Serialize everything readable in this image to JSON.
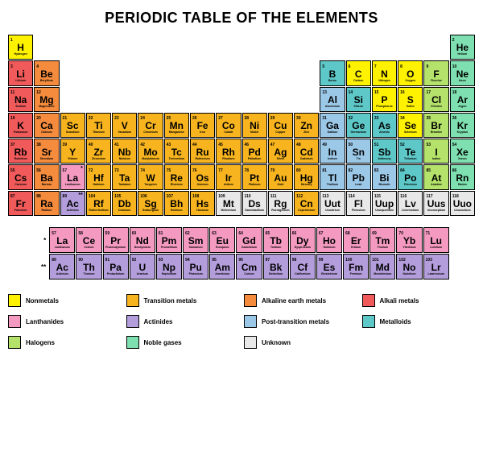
{
  "title": "PERIODIC TABLE OF THE ELEMENTS",
  "title_fontsize": 18,
  "grid": {
    "cols": 18,
    "rows": 7
  },
  "categories": {
    "nonmetal": {
      "label": "Nonmetals",
      "color": "#fff200"
    },
    "transition": {
      "label": "Transition metals",
      "color": "#f7b41e"
    },
    "alkaline_earth": {
      "label": "Alkaline earth metals",
      "color": "#f58b3c"
    },
    "alkali": {
      "label": "Alkali metals",
      "color": "#f15a5a"
    },
    "lanthanide": {
      "label": "Lanthanides",
      "color": "#f49ac1"
    },
    "actinide": {
      "label": "Actinides",
      "color": "#b39ddb"
    },
    "post_transition": {
      "label": "Post-transition metals",
      "color": "#9cc8e8"
    },
    "metalloid": {
      "label": "Metalloids",
      "color": "#5ec8c8"
    },
    "halogen": {
      "label": "Halogens",
      "color": "#b4e26a"
    },
    "noble": {
      "label": "Noble gases",
      "color": "#7ee0b0"
    },
    "unknown": {
      "label": "Unknown",
      "color": "#e8e8e8"
    }
  },
  "legend_order": [
    "nonmetal",
    "transition",
    "alkaline_earth",
    "alkali",
    "lanthanide",
    "actinide",
    "post_transition",
    "metalloid",
    "halogen",
    "noble",
    "unknown"
  ],
  "legend_cols": 4,
  "lanth_marker": "*",
  "actin_marker": "**",
  "elements": [
    {
      "n": 1,
      "s": "H",
      "nm": "Hydrogen",
      "c": "nonmetal",
      "row": 1,
      "col": 1
    },
    {
      "n": 2,
      "s": "He",
      "nm": "Helium",
      "c": "noble",
      "row": 1,
      "col": 18
    },
    {
      "n": 3,
      "s": "Li",
      "nm": "Lithium",
      "c": "alkali",
      "row": 2,
      "col": 1
    },
    {
      "n": 4,
      "s": "Be",
      "nm": "Beryllium",
      "c": "alkaline_earth",
      "row": 2,
      "col": 2
    },
    {
      "n": 5,
      "s": "B",
      "nm": "Boron",
      "c": "metalloid",
      "row": 2,
      "col": 13
    },
    {
      "n": 6,
      "s": "C",
      "nm": "Carbon",
      "c": "nonmetal",
      "row": 2,
      "col": 14
    },
    {
      "n": 7,
      "s": "N",
      "nm": "Nitrogen",
      "c": "nonmetal",
      "row": 2,
      "col": 15
    },
    {
      "n": 8,
      "s": "O",
      "nm": "Oxygen",
      "c": "nonmetal",
      "row": 2,
      "col": 16
    },
    {
      "n": 9,
      "s": "F",
      "nm": "Fluorine",
      "c": "halogen",
      "row": 2,
      "col": 17
    },
    {
      "n": 10,
      "s": "Ne",
      "nm": "Neon",
      "c": "noble",
      "row": 2,
      "col": 18
    },
    {
      "n": 11,
      "s": "Na",
      "nm": "Sodium",
      "c": "alkali",
      "row": 3,
      "col": 1
    },
    {
      "n": 12,
      "s": "Mg",
      "nm": "Magnesium",
      "c": "alkaline_earth",
      "row": 3,
      "col": 2
    },
    {
      "n": 13,
      "s": "Al",
      "nm": "Aluminium",
      "c": "post_transition",
      "row": 3,
      "col": 13
    },
    {
      "n": 14,
      "s": "Si",
      "nm": "Silicon",
      "c": "metalloid",
      "row": 3,
      "col": 14
    },
    {
      "n": 15,
      "s": "P",
      "nm": "Phosphorus",
      "c": "nonmetal",
      "row": 3,
      "col": 15
    },
    {
      "n": 16,
      "s": "S",
      "nm": "Sulfur",
      "c": "nonmetal",
      "row": 3,
      "col": 16
    },
    {
      "n": 17,
      "s": "Cl",
      "nm": "Chlorine",
      "c": "halogen",
      "row": 3,
      "col": 17
    },
    {
      "n": 18,
      "s": "Ar",
      "nm": "Argon",
      "c": "noble",
      "row": 3,
      "col": 18
    },
    {
      "n": 19,
      "s": "K",
      "nm": "Potassium",
      "c": "alkali",
      "row": 4,
      "col": 1
    },
    {
      "n": 20,
      "s": "Ca",
      "nm": "Calcium",
      "c": "alkaline_earth",
      "row": 4,
      "col": 2
    },
    {
      "n": 21,
      "s": "Sc",
      "nm": "Scandium",
      "c": "transition",
      "row": 4,
      "col": 3
    },
    {
      "n": 22,
      "s": "Ti",
      "nm": "Titanium",
      "c": "transition",
      "row": 4,
      "col": 4
    },
    {
      "n": 23,
      "s": "V",
      "nm": "Vanadium",
      "c": "transition",
      "row": 4,
      "col": 5
    },
    {
      "n": 24,
      "s": "Cr",
      "nm": "Chromium",
      "c": "transition",
      "row": 4,
      "col": 6
    },
    {
      "n": 25,
      "s": "Mn",
      "nm": "Manganese",
      "c": "transition",
      "row": 4,
      "col": 7
    },
    {
      "n": 26,
      "s": "Fe",
      "nm": "Iron",
      "c": "transition",
      "row": 4,
      "col": 8
    },
    {
      "n": 27,
      "s": "Co",
      "nm": "Cobalt",
      "c": "transition",
      "row": 4,
      "col": 9
    },
    {
      "n": 28,
      "s": "Ni",
      "nm": "Nickel",
      "c": "transition",
      "row": 4,
      "col": 10
    },
    {
      "n": 29,
      "s": "Cu",
      "nm": "Copper",
      "c": "transition",
      "row": 4,
      "col": 11
    },
    {
      "n": 30,
      "s": "Zn",
      "nm": "Zinc",
      "c": "transition",
      "row": 4,
      "col": 12
    },
    {
      "n": 31,
      "s": "Ga",
      "nm": "Gallium",
      "c": "post_transition",
      "row": 4,
      "col": 13
    },
    {
      "n": 32,
      "s": "Ge",
      "nm": "Germanium",
      "c": "metalloid",
      "row": 4,
      "col": 14
    },
    {
      "n": 33,
      "s": "As",
      "nm": "Arsenic",
      "c": "metalloid",
      "row": 4,
      "col": 15
    },
    {
      "n": 34,
      "s": "Se",
      "nm": "Selenium",
      "c": "nonmetal",
      "row": 4,
      "col": 16
    },
    {
      "n": 35,
      "s": "Br",
      "nm": "Bromine",
      "c": "halogen",
      "row": 4,
      "col": 17
    },
    {
      "n": 36,
      "s": "Kr",
      "nm": "Krypton",
      "c": "noble",
      "row": 4,
      "col": 18
    },
    {
      "n": 37,
      "s": "Rb",
      "nm": "Rubidium",
      "c": "alkali",
      "row": 5,
      "col": 1
    },
    {
      "n": 38,
      "s": "Sr",
      "nm": "Strontium",
      "c": "alkaline_earth",
      "row": 5,
      "col": 2
    },
    {
      "n": 39,
      "s": "Y",
      "nm": "Yttrium",
      "c": "transition",
      "row": 5,
      "col": 3
    },
    {
      "n": 40,
      "s": "Zr",
      "nm": "Zirconium",
      "c": "transition",
      "row": 5,
      "col": 4
    },
    {
      "n": 41,
      "s": "Nb",
      "nm": "Niobium",
      "c": "transition",
      "row": 5,
      "col": 5
    },
    {
      "n": 42,
      "s": "Mo",
      "nm": "Molybdenum",
      "c": "transition",
      "row": 5,
      "col": 6
    },
    {
      "n": 43,
      "s": "Tc",
      "nm": "Technetium",
      "c": "transition",
      "row": 5,
      "col": 7
    },
    {
      "n": 44,
      "s": "Ru",
      "nm": "Ruthenium",
      "c": "transition",
      "row": 5,
      "col": 8
    },
    {
      "n": 45,
      "s": "Rh",
      "nm": "Rhodium",
      "c": "transition",
      "row": 5,
      "col": 9
    },
    {
      "n": 46,
      "s": "Pd",
      "nm": "Palladium",
      "c": "transition",
      "row": 5,
      "col": 10
    },
    {
      "n": 47,
      "s": "Ag",
      "nm": "Silver",
      "c": "transition",
      "row": 5,
      "col": 11
    },
    {
      "n": 48,
      "s": "Cd",
      "nm": "Cadmium",
      "c": "transition",
      "row": 5,
      "col": 12
    },
    {
      "n": 49,
      "s": "In",
      "nm": "Indium",
      "c": "post_transition",
      "row": 5,
      "col": 13
    },
    {
      "n": 50,
      "s": "Sn",
      "nm": "Tin",
      "c": "post_transition",
      "row": 5,
      "col": 14
    },
    {
      "n": 51,
      "s": "Sb",
      "nm": "Antimony",
      "c": "metalloid",
      "row": 5,
      "col": 15
    },
    {
      "n": 52,
      "s": "Te",
      "nm": "Tellurium",
      "c": "metalloid",
      "row": 5,
      "col": 16
    },
    {
      "n": 53,
      "s": "I",
      "nm": "Iodine",
      "c": "halogen",
      "row": 5,
      "col": 17
    },
    {
      "n": 54,
      "s": "Xe",
      "nm": "Xenon",
      "c": "noble",
      "row": 5,
      "col": 18
    },
    {
      "n": 55,
      "s": "Cs",
      "nm": "Caesium",
      "c": "alkali",
      "row": 6,
      "col": 1
    },
    {
      "n": 56,
      "s": "Ba",
      "nm": "Barium",
      "c": "alkaline_earth",
      "row": 6,
      "col": 2
    },
    {
      "n": 72,
      "s": "Hf",
      "nm": "Hafnium",
      "c": "transition",
      "row": 6,
      "col": 4
    },
    {
      "n": 73,
      "s": "Ta",
      "nm": "Tantalum",
      "c": "transition",
      "row": 6,
      "col": 5
    },
    {
      "n": 74,
      "s": "W",
      "nm": "Tungsten",
      "c": "transition",
      "row": 6,
      "col": 6
    },
    {
      "n": 75,
      "s": "Re",
      "nm": "Rhenium",
      "c": "transition",
      "row": 6,
      "col": 7
    },
    {
      "n": 76,
      "s": "Os",
      "nm": "Osmium",
      "c": "transition",
      "row": 6,
      "col": 8
    },
    {
      "n": 77,
      "s": "Ir",
      "nm": "Iridium",
      "c": "transition",
      "row": 6,
      "col": 9
    },
    {
      "n": 78,
      "s": "Pt",
      "nm": "Platinum",
      "c": "transition",
      "row": 6,
      "col": 10
    },
    {
      "n": 79,
      "s": "Au",
      "nm": "Gold",
      "c": "transition",
      "row": 6,
      "col": 11
    },
    {
      "n": 80,
      "s": "Hg",
      "nm": "Mercury",
      "c": "transition",
      "row": 6,
      "col": 12
    },
    {
      "n": 81,
      "s": "Tl",
      "nm": "Thallium",
      "c": "post_transition",
      "row": 6,
      "col": 13
    },
    {
      "n": 82,
      "s": "Pb",
      "nm": "Lead",
      "c": "post_transition",
      "row": 6,
      "col": 14
    },
    {
      "n": 83,
      "s": "Bi",
      "nm": "Bismuth",
      "c": "post_transition",
      "row": 6,
      "col": 15
    },
    {
      "n": 84,
      "s": "Po",
      "nm": "Polonium",
      "c": "metalloid",
      "row": 6,
      "col": 16
    },
    {
      "n": 85,
      "s": "At",
      "nm": "Astatine",
      "c": "halogen",
      "row": 6,
      "col": 17
    },
    {
      "n": 86,
      "s": "Rn",
      "nm": "Radon",
      "c": "noble",
      "row": 6,
      "col": 18
    },
    {
      "n": 87,
      "s": "Fr",
      "nm": "Francium",
      "c": "alkali",
      "row": 7,
      "col": 1
    },
    {
      "n": 88,
      "s": "Ra",
      "nm": "Radium",
      "c": "alkaline_earth",
      "row": 7,
      "col": 2
    },
    {
      "n": 104,
      "s": "Rf",
      "nm": "Rutherfordium",
      "c": "transition",
      "row": 7,
      "col": 4
    },
    {
      "n": 105,
      "s": "Db",
      "nm": "Dubnium",
      "c": "transition",
      "row": 7,
      "col": 5
    },
    {
      "n": 106,
      "s": "Sg",
      "nm": "Seaborgium",
      "c": "transition",
      "row": 7,
      "col": 6
    },
    {
      "n": 107,
      "s": "Bh",
      "nm": "Bohrium",
      "c": "transition",
      "row": 7,
      "col": 7
    },
    {
      "n": 108,
      "s": "Hs",
      "nm": "Hassium",
      "c": "transition",
      "row": 7,
      "col": 8
    },
    {
      "n": 109,
      "s": "Mt",
      "nm": "Meitnerium",
      "c": "unknown",
      "row": 7,
      "col": 9
    },
    {
      "n": 110,
      "s": "Ds",
      "nm": "Darmstadtium",
      "c": "unknown",
      "row": 7,
      "col": 10
    },
    {
      "n": 111,
      "s": "Rg",
      "nm": "Roentgenium",
      "c": "unknown",
      "row": 7,
      "col": 11
    },
    {
      "n": 112,
      "s": "Cn",
      "nm": "Copernicium",
      "c": "transition",
      "row": 7,
      "col": 12
    },
    {
      "n": 113,
      "s": "Uut",
      "nm": "Ununtrium",
      "c": "unknown",
      "row": 7,
      "col": 13
    },
    {
      "n": 114,
      "s": "Fl",
      "nm": "Flerovium",
      "c": "unknown",
      "row": 7,
      "col": 14
    },
    {
      "n": 115,
      "s": "Uup",
      "nm": "Ununpentium",
      "c": "unknown",
      "row": 7,
      "col": 15
    },
    {
      "n": 116,
      "s": "Lv",
      "nm": "Livermorium",
      "c": "unknown",
      "row": 7,
      "col": 16
    },
    {
      "n": 117,
      "s": "Uus",
      "nm": "Ununseptium",
      "c": "unknown",
      "row": 7,
      "col": 17
    },
    {
      "n": 118,
      "s": "Uuo",
      "nm": "Ununoctium",
      "c": "unknown",
      "row": 7,
      "col": 18
    }
  ],
  "lanthanides": [
    {
      "n": 57,
      "s": "La",
      "nm": "Lanthanum",
      "c": "lanthanide"
    },
    {
      "n": 58,
      "s": "Ce",
      "nm": "Cerium",
      "c": "lanthanide"
    },
    {
      "n": 59,
      "s": "Pr",
      "nm": "Praseodymium",
      "c": "lanthanide"
    },
    {
      "n": 60,
      "s": "Nd",
      "nm": "Neodymium",
      "c": "lanthanide"
    },
    {
      "n": 61,
      "s": "Pm",
      "nm": "Promethium",
      "c": "lanthanide"
    },
    {
      "n": 62,
      "s": "Sm",
      "nm": "Samarium",
      "c": "lanthanide"
    },
    {
      "n": 63,
      "s": "Eu",
      "nm": "Europium",
      "c": "lanthanide"
    },
    {
      "n": 64,
      "s": "Gd",
      "nm": "Gadolinium",
      "c": "lanthanide"
    },
    {
      "n": 65,
      "s": "Tb",
      "nm": "Terbium",
      "c": "lanthanide"
    },
    {
      "n": 66,
      "s": "Dy",
      "nm": "Dysprosium",
      "c": "lanthanide"
    },
    {
      "n": 67,
      "s": "Ho",
      "nm": "Holmium",
      "c": "lanthanide"
    },
    {
      "n": 68,
      "s": "Er",
      "nm": "Erbium",
      "c": "lanthanide"
    },
    {
      "n": 69,
      "s": "Tm",
      "nm": "Thulium",
      "c": "lanthanide"
    },
    {
      "n": 70,
      "s": "Yb",
      "nm": "Ytterbium",
      "c": "lanthanide"
    },
    {
      "n": 71,
      "s": "Lu",
      "nm": "Lutetium",
      "c": "lanthanide"
    }
  ],
  "actinides": [
    {
      "n": 89,
      "s": "Ac",
      "nm": "Actinium",
      "c": "actinide"
    },
    {
      "n": 90,
      "s": "Th",
      "nm": "Thorium",
      "c": "actinide"
    },
    {
      "n": 91,
      "s": "Pa",
      "nm": "Protactinium",
      "c": "actinide"
    },
    {
      "n": 92,
      "s": "U",
      "nm": "Uranium",
      "c": "actinide"
    },
    {
      "n": 93,
      "s": "Np",
      "nm": "Neptunium",
      "c": "actinide"
    },
    {
      "n": 94,
      "s": "Pu",
      "nm": "Plutonium",
      "c": "actinide"
    },
    {
      "n": 95,
      "s": "Am",
      "nm": "Americium",
      "c": "actinide"
    },
    {
      "n": 96,
      "s": "Cm",
      "nm": "Curium",
      "c": "actinide"
    },
    {
      "n": 97,
      "s": "Bk",
      "nm": "Berkelium",
      "c": "actinide"
    },
    {
      "n": 98,
      "s": "Cf",
      "nm": "Californium",
      "c": "actinide"
    },
    {
      "n": 99,
      "s": "Es",
      "nm": "Einsteinium",
      "c": "actinide"
    },
    {
      "n": 100,
      "s": "Fm",
      "nm": "Fermium",
      "c": "actinide"
    },
    {
      "n": 101,
      "s": "Md",
      "nm": "Mendelevium",
      "c": "actinide"
    },
    {
      "n": 102,
      "s": "No",
      "nm": "Nobelium",
      "c": "actinide"
    },
    {
      "n": 103,
      "s": "Lr",
      "nm": "Lawrencium",
      "c": "actinide"
    }
  ],
  "placeholder_cells": [
    {
      "row": 6,
      "col": 3,
      "c": "lanthanide",
      "mark": "*",
      "s": "La",
      "n": 57,
      "nm": "Lanthanum"
    },
    {
      "row": 7,
      "col": 3,
      "c": "actinide",
      "mark": "**",
      "s": "Ac",
      "n": 89,
      "nm": "Actinium"
    }
  ]
}
